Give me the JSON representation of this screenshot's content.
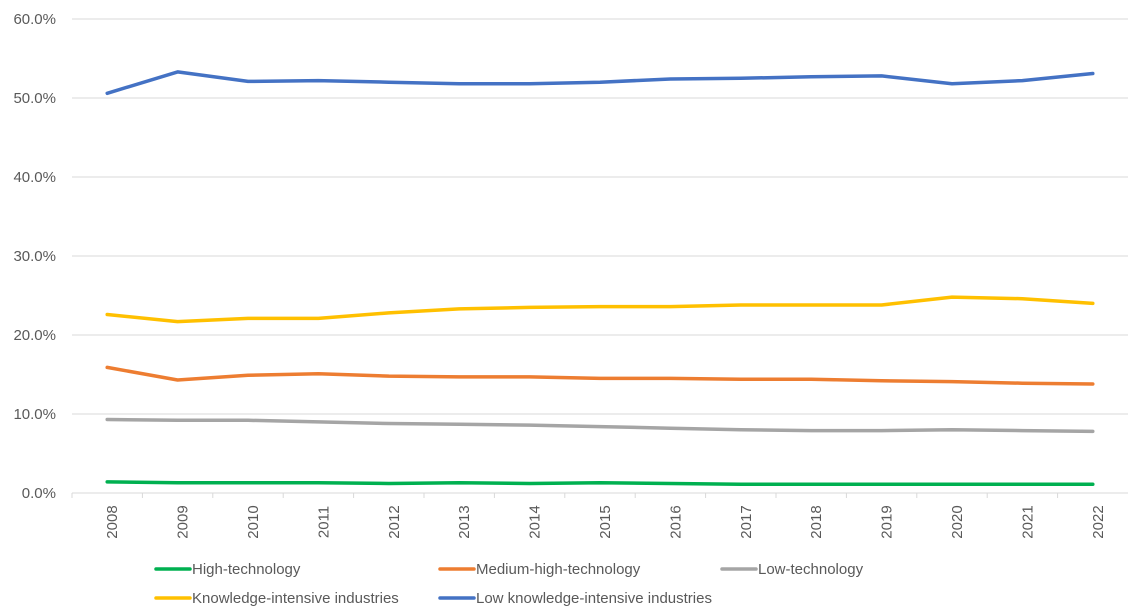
{
  "chart_data": {
    "type": "line",
    "title": "",
    "xlabel": "",
    "ylabel": "",
    "ylim": [
      0,
      60
    ],
    "y_tick_format": "percent-1dp",
    "y_ticks": [
      "0.0%",
      "10.0%",
      "20.0%",
      "30.0%",
      "40.0%",
      "50.0%",
      "60.0%"
    ],
    "grid": "horizontal",
    "legend_position": "bottom",
    "categories": [
      "2008",
      "2009",
      "2010",
      "2011",
      "2012",
      "2013",
      "2014",
      "2015",
      "2016",
      "2017",
      "2018",
      "2019",
      "2020",
      "2021",
      "2022"
    ],
    "series": [
      {
        "name": "High-technology",
        "color": "#00b050",
        "values": [
          1.4,
          1.3,
          1.3,
          1.3,
          1.2,
          1.3,
          1.2,
          1.3,
          1.2,
          1.1,
          1.1,
          1.1,
          1.1,
          1.1,
          1.1
        ]
      },
      {
        "name": "Medium-high-technology",
        "color": "#ed7d31",
        "values": [
          15.9,
          14.3,
          14.9,
          15.1,
          14.8,
          14.7,
          14.7,
          14.5,
          14.5,
          14.4,
          14.4,
          14.2,
          14.1,
          13.9,
          13.8
        ]
      },
      {
        "name": "Low-technology",
        "color": "#a5a5a5",
        "values": [
          9.3,
          9.2,
          9.2,
          9.0,
          8.8,
          8.7,
          8.6,
          8.4,
          8.2,
          8.0,
          7.9,
          7.9,
          8.0,
          7.9,
          7.8
        ]
      },
      {
        "name": "Knowledge-intensive industries",
        "color": "#ffc000",
        "values": [
          22.6,
          21.7,
          22.1,
          22.1,
          22.8,
          23.3,
          23.5,
          23.6,
          23.6,
          23.8,
          23.8,
          23.8,
          24.8,
          24.6,
          24.0
        ]
      },
      {
        "name": "Low knowledge-intensive industries",
        "color": "#4472c4",
        "values": [
          50.6,
          53.3,
          52.1,
          52.2,
          52.0,
          51.8,
          51.8,
          52.0,
          52.4,
          52.5,
          52.7,
          52.8,
          51.8,
          52.2,
          53.1
        ]
      }
    ]
  },
  "colors": {
    "gridline": "#d9d9d9",
    "axis_text": "#595959"
  }
}
